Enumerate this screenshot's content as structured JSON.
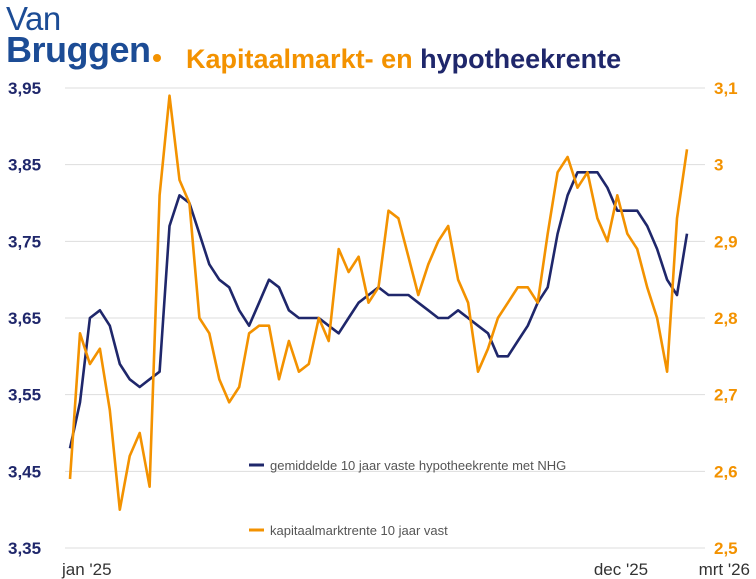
{
  "logo": {
    "line1": "Van",
    "line2": "Bruggen"
  },
  "title": {
    "part1": "Kapitaalmarkt- en",
    "part2": "hypotheekrente"
  },
  "colors": {
    "navy": "#1f276b",
    "orange": "#f39200",
    "grid": "#dddddd",
    "logo": "#1c4c95"
  },
  "chart_data": {
    "type": "line",
    "title": "Kapitaalmarkt- en hypotheekrente",
    "x_labels": [
      "jan '25",
      "dec '25",
      "mrt '26"
    ],
    "left_axis": {
      "ylim": [
        3.35,
        3.95
      ],
      "ticks": [
        "3,95",
        "3,85",
        "3,75",
        "3,65",
        "3,55",
        "3,45",
        "3,35"
      ]
    },
    "right_axis": {
      "ylim": [
        2.5,
        3.1
      ],
      "ticks": [
        "3,1",
        "3",
        "2,9",
        "2,8",
        "2,7",
        "2,6",
        "2,5"
      ]
    },
    "grid": true,
    "legend_placement": "bottom-center",
    "series": [
      {
        "name": "gemiddelde 10 jaar vaste hypotheekrente met NHG",
        "axis": "left",
        "color": "#1f276b",
        "values": [
          3.48,
          3.54,
          3.65,
          3.66,
          3.64,
          3.59,
          3.57,
          3.56,
          3.57,
          3.58,
          3.77,
          3.81,
          3.8,
          3.76,
          3.72,
          3.7,
          3.69,
          3.66,
          3.64,
          3.67,
          3.7,
          3.69,
          3.66,
          3.65,
          3.65,
          3.65,
          3.64,
          3.63,
          3.65,
          3.67,
          3.68,
          3.69,
          3.68,
          3.68,
          3.68,
          3.67,
          3.66,
          3.65,
          3.65,
          3.66,
          3.65,
          3.64,
          3.63,
          3.6,
          3.6,
          3.62,
          3.64,
          3.67,
          3.69,
          3.76,
          3.81,
          3.84,
          3.84,
          3.84,
          3.82,
          3.79,
          3.79,
          3.79,
          3.77,
          3.74,
          3.7,
          3.68,
          3.76
        ]
      },
      {
        "name": "kapitaalmarktrente 10 jaar vast",
        "axis": "right",
        "color": "#f39200",
        "values": [
          2.59,
          2.78,
          2.74,
          2.76,
          2.68,
          2.55,
          2.62,
          2.65,
          2.58,
          2.96,
          3.09,
          2.98,
          2.95,
          2.8,
          2.78,
          2.72,
          2.69,
          2.71,
          2.78,
          2.79,
          2.79,
          2.72,
          2.77,
          2.73,
          2.74,
          2.8,
          2.77,
          2.89,
          2.86,
          2.88,
          2.82,
          2.84,
          2.94,
          2.93,
          2.88,
          2.83,
          2.87,
          2.9,
          2.92,
          2.85,
          2.82,
          2.73,
          2.76,
          2.8,
          2.82,
          2.84,
          2.84,
          2.82,
          2.91,
          2.99,
          3.01,
          2.97,
          2.99,
          2.93,
          2.9,
          2.96,
          2.91,
          2.89,
          2.84,
          2.8,
          2.73,
          2.93,
          3.02
        ]
      }
    ]
  }
}
